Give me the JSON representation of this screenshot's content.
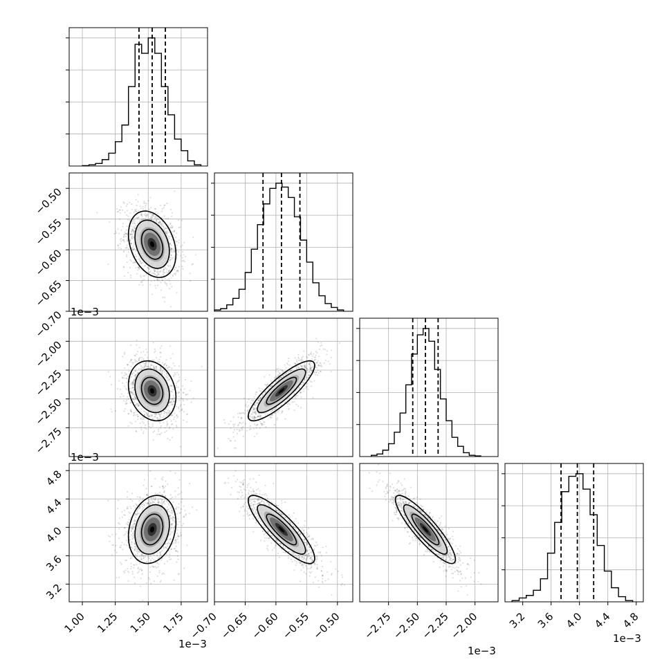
{
  "chart_data": {
    "type": "corner",
    "grid": true,
    "parameters": [
      {
        "range": [
          0.9,
          1.95
        ],
        "ticks": [
          "1.00",
          "1.25",
          "1.50",
          "1.75"
        ],
        "tick_values": [
          1.0,
          1.25,
          1.5,
          1.75
        ],
        "offset": "1e−3",
        "quantiles": [
          1.43,
          1.53,
          1.63
        ],
        "center": 1.53,
        "sd": 0.09
      },
      {
        "range": [
          -0.7,
          -0.475
        ],
        "ticks": [
          "−0.70",
          "−0.65",
          "−0.60",
          "−0.55",
          "−0.50"
        ],
        "tick_values": [
          -0.7,
          -0.65,
          -0.6,
          -0.55,
          -0.5
        ],
        "offset": "1e−3",
        "quantiles": [
          -0.621,
          -0.591,
          -0.561
        ],
        "center": -0.591,
        "sd": 0.027
      },
      {
        "range": [
          -3.0,
          -1.8
        ],
        "ticks": [
          "−2.75",
          "−2.50",
          "−2.25",
          "−2.00"
        ],
        "tick_values": [
          -2.75,
          -2.5,
          -2.25,
          -2.0
        ],
        "offset": "1e−3",
        "quantiles": [
          -2.54,
          -2.43,
          -2.32
        ],
        "center": -2.43,
        "sd": 0.13
      },
      {
        "range": [
          2.95,
          4.9
        ],
        "ticks": [
          "3.2",
          "3.6",
          "4.0",
          "4.4",
          "4.8"
        ],
        "tick_values": [
          3.2,
          3.6,
          4.0,
          4.4,
          4.8
        ],
        "offset": "1e−3",
        "quantiles": [
          3.74,
          3.97,
          4.2
        ],
        "center": 3.97,
        "sd": 0.24
      }
    ],
    "histograms": [
      {
        "param": 0,
        "bin_edges": [
          1.0,
          1.05,
          1.1,
          1.15,
          1.2,
          1.25,
          1.3,
          1.35,
          1.4,
          1.45,
          1.5,
          1.55,
          1.6,
          1.65,
          1.7,
          1.75,
          1.8,
          1.85,
          1.9
        ],
        "values": [
          0.003,
          0.01,
          0.02,
          0.05,
          0.1,
          0.19,
          0.32,
          0.62,
          0.95,
          0.88,
          1.0,
          0.88,
          0.62,
          0.4,
          0.21,
          0.12,
          0.04,
          0.01
        ]
      },
      {
        "param": 1,
        "bin_edges": [
          -0.7,
          -0.69,
          -0.68,
          -0.67,
          -0.66,
          -0.65,
          -0.64,
          -0.63,
          -0.62,
          -0.61,
          -0.6,
          -0.59,
          -0.58,
          -0.57,
          -0.56,
          -0.55,
          -0.54,
          -0.53,
          -0.52,
          -0.51,
          -0.5,
          -0.49
        ],
        "values": [
          0.01,
          0.02,
          0.05,
          0.1,
          0.17,
          0.3,
          0.48,
          0.67,
          0.83,
          0.95,
          0.99,
          0.96,
          0.88,
          0.73,
          0.55,
          0.38,
          0.22,
          0.12,
          0.06,
          0.03,
          0.01
        ]
      },
      {
        "param": 2,
        "bin_edges": [
          -2.9,
          -2.85,
          -2.8,
          -2.75,
          -2.7,
          -2.65,
          -2.6,
          -2.55,
          -2.5,
          -2.45,
          -2.4,
          -2.35,
          -2.3,
          -2.25,
          -2.2,
          -2.15,
          -2.1,
          -2.05,
          -2.0,
          -1.95
        ],
        "values": [
          0.01,
          0.02,
          0.05,
          0.1,
          0.19,
          0.34,
          0.56,
          0.8,
          0.95,
          1.0,
          0.9,
          0.68,
          0.45,
          0.28,
          0.15,
          0.08,
          0.03,
          0.01,
          0.005
        ]
      },
      {
        "param": 3,
        "bin_edges": [
          3.05,
          3.15,
          3.25,
          3.35,
          3.45,
          3.55,
          3.65,
          3.75,
          3.85,
          3.95,
          4.05,
          4.15,
          4.25,
          4.35,
          4.45,
          4.55,
          4.65,
          4.75
        ],
        "values": [
          0.01,
          0.03,
          0.05,
          0.09,
          0.18,
          0.38,
          0.62,
          0.86,
          0.98,
          1.0,
          0.88,
          0.68,
          0.44,
          0.24,
          0.11,
          0.04,
          0.01
        ]
      }
    ],
    "correlations": [
      {
        "x": 0,
        "y": 1,
        "rho": -0.3
      },
      {
        "x": 0,
        "y": 2,
        "rho": -0.2
      },
      {
        "x": 1,
        "y": 2,
        "rho": 0.85
      },
      {
        "x": 0,
        "y": 3,
        "rho": 0.2
      },
      {
        "x": 1,
        "y": 3,
        "rho": -0.85
      },
      {
        "x": 2,
        "y": 3,
        "rho": -0.88
      }
    ]
  }
}
